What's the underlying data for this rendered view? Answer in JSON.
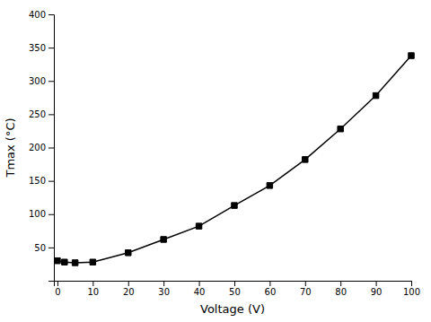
{
  "chart_data": {
    "type": "line",
    "x": [
      0,
      2,
      5,
      10,
      20,
      30,
      40,
      50,
      60,
      70,
      80,
      90,
      100
    ],
    "values": [
      30,
      28,
      27,
      28,
      42,
      62,
      82,
      113,
      143,
      182,
      228,
      278,
      338
    ],
    "xlabel": "Voltage (V)",
    "ylabel": "Tmax (°C)",
    "xlim": [
      -1,
      100
    ],
    "ylim": [
      0,
      400
    ],
    "xticks": [
      0,
      10,
      20,
      30,
      40,
      50,
      60,
      70,
      80,
      90,
      100
    ],
    "yticks": [
      50,
      100,
      150,
      200,
      250,
      300,
      350,
      400
    ],
    "color": "#000000",
    "marker": "square"
  }
}
